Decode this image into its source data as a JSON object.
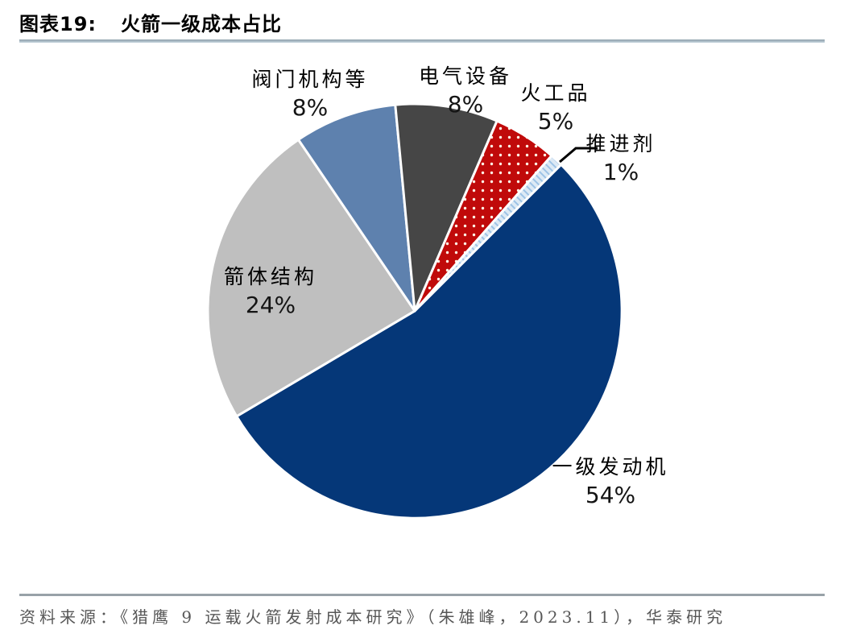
{
  "header": {
    "figure_label": "图表19:",
    "title": "火箭一级成本占比"
  },
  "chart_data": {
    "type": "pie",
    "title": "火箭一级成本占比",
    "unit": "%",
    "direction": "clockwise",
    "start_angle_deg_cw_from_top": 45,
    "slices": [
      {
        "label": "一级发动机",
        "value": 54,
        "pct_label": "54%",
        "color": "#053778",
        "pattern": "solid"
      },
      {
        "label": "箭体结构",
        "value": 24,
        "pct_label": "24%",
        "color": "#BFBFBF",
        "pattern": "solid"
      },
      {
        "label": "阀门机构等",
        "value": 8,
        "pct_label": "8%",
        "color": "#5E81AE",
        "pattern": "solid"
      },
      {
        "label": "电气设备",
        "value": 8,
        "pct_label": "8%",
        "color": "#464646",
        "pattern": "solid"
      },
      {
        "label": "火工品",
        "value": 5,
        "pct_label": "5%",
        "color": "#C00A0A",
        "pattern": "white-dots"
      },
      {
        "label": "推进剂",
        "value": 1,
        "pct_label": "1%",
        "color": "#DDEAF5",
        "pattern": "diagonal-stripes"
      }
    ]
  },
  "footer": {
    "source": "资料来源：《猎鹰 9 运载火箭发射成本研究》（朱雄峰，2023.11），华泰研究"
  }
}
